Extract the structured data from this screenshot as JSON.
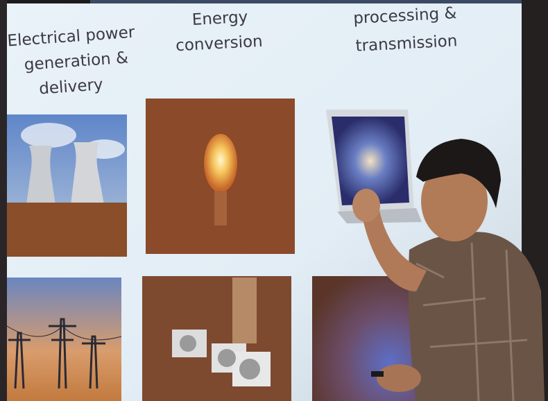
{
  "columns": [
    {
      "lines": [
        "Electrical power",
        "generation &",
        "delivery"
      ]
    },
    {
      "lines": [
        "Energy",
        "conversion"
      ]
    },
    {
      "lines": [
        "processing &",
        "transmission"
      ]
    }
  ]
}
